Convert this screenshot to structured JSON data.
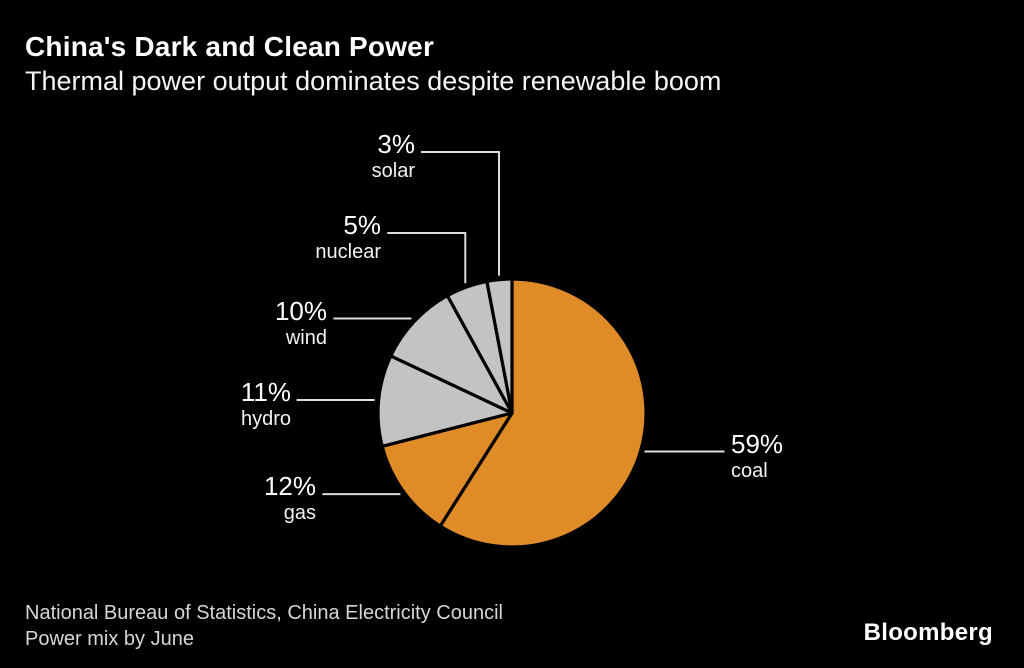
{
  "header": {
    "title": "China's Dark and Clean Power",
    "subtitle": "Thermal power output dominates despite renewable boom"
  },
  "chart_data": {
    "type": "pie",
    "title": "China's Dark and Clean Power",
    "subtitle": "Thermal power output dominates despite renewable boom",
    "unit": "percent of power mix",
    "start_angle_deg": 0,
    "direction": "clockwise",
    "legend": "none",
    "slices": [
      {
        "label": "coal",
        "value": 59,
        "percent_label": "59%",
        "color": "#DE8B28"
      },
      {
        "label": "gas",
        "value": 12,
        "percent_label": "12%",
        "color": "#DE8B28"
      },
      {
        "label": "hydro",
        "value": 11,
        "percent_label": "11%",
        "color": "#C3C3C3"
      },
      {
        "label": "wind",
        "value": 10,
        "percent_label": "10%",
        "color": "#C3C3C3"
      },
      {
        "label": "nuclear",
        "value": 5,
        "percent_label": "5%",
        "color": "#C3C3C3"
      },
      {
        "label": "solar",
        "value": 3,
        "percent_label": "3%",
        "color": "#C3C3C3"
      }
    ],
    "palette": {
      "thermal": "#DE8B28",
      "clean": "#C3C3C3",
      "background": "#000000",
      "leader_line": "#DCDCDC",
      "slice_border": "#000000"
    }
  },
  "footer": {
    "source": "National Bureau of Statistics, China Electricity Council",
    "note": "Power mix by June",
    "brand": "Bloomberg"
  }
}
